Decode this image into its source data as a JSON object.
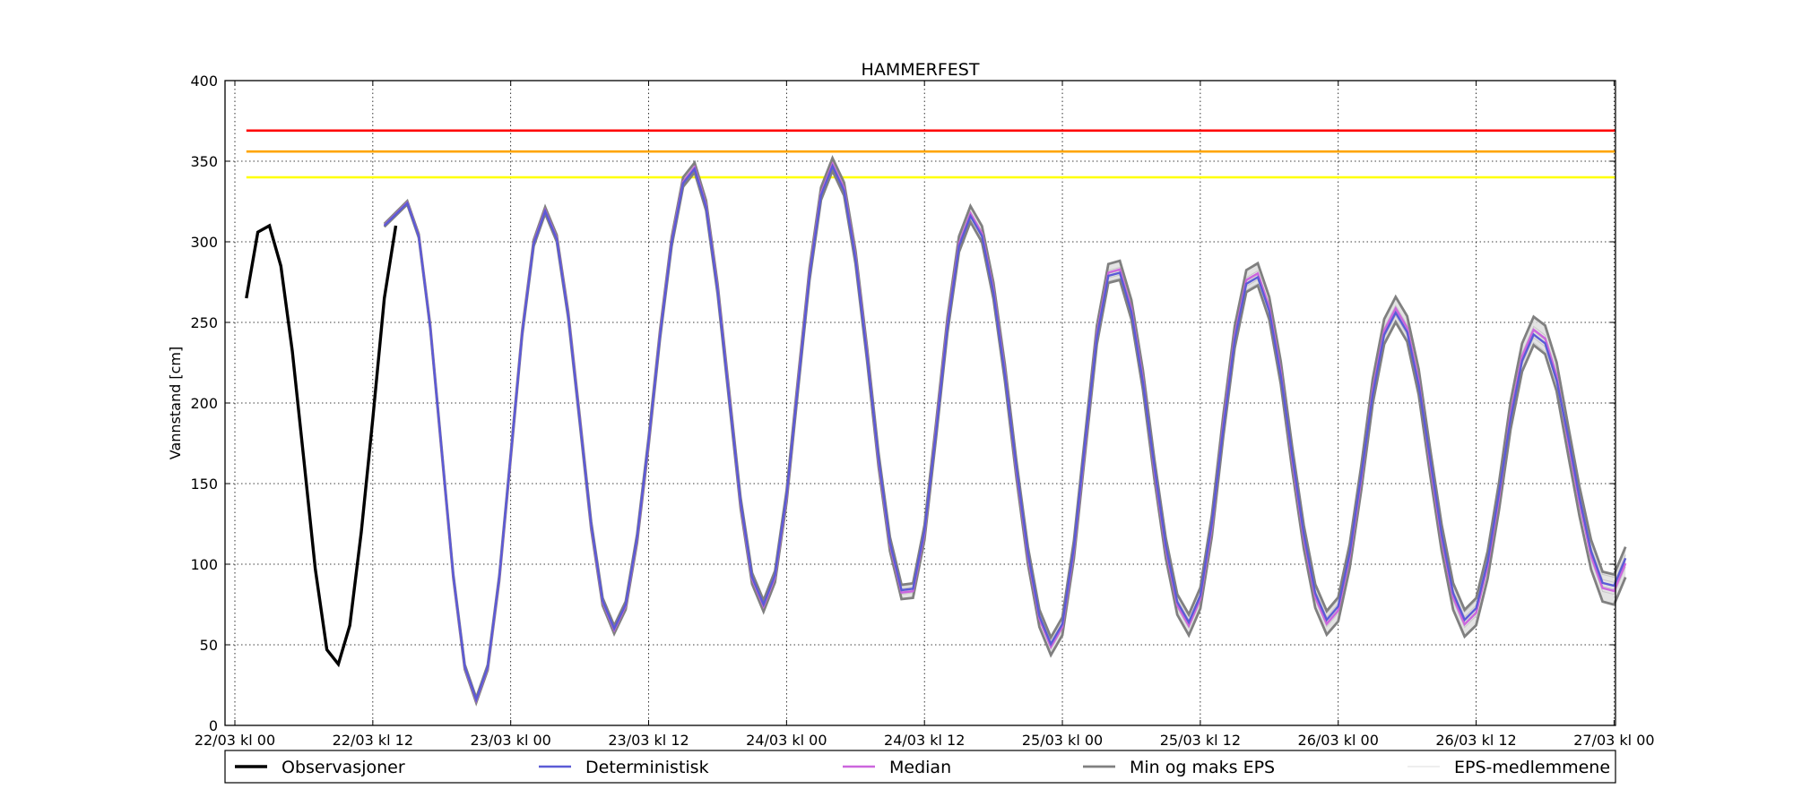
{
  "chart_data": {
    "type": "line",
    "title": "HAMMERFEST",
    "xlabel": "",
    "ylabel": "Vannstand [cm]",
    "xlim": [
      0,
      122
    ],
    "ylim": [
      0,
      400
    ],
    "yticks": [
      0,
      50,
      100,
      150,
      200,
      250,
      300,
      350,
      400
    ],
    "xticks": [
      {
        "hour": 0,
        "label": "22/03 kl 00"
      },
      {
        "hour": 12,
        "label": "22/03 kl 12"
      },
      {
        "hour": 24,
        "label": "23/03 kl 00"
      },
      {
        "hour": 36,
        "label": "23/03 kl 12"
      },
      {
        "hour": 48,
        "label": "24/03 kl 00"
      },
      {
        "hour": 60,
        "label": "24/03 kl 12"
      },
      {
        "hour": 72,
        "label": "25/03 kl 00"
      },
      {
        "hour": 84,
        "label": "25/03 kl 12"
      },
      {
        "hour": 96,
        "label": "26/03 kl 00"
      },
      {
        "hour": 108,
        "label": "26/03 kl 12"
      },
      {
        "hour": 120,
        "label": "27/03 kl 00"
      }
    ],
    "grid": true,
    "legend_position": "bottom",
    "thresholds": [
      {
        "value": 369,
        "color": "#ff0000"
      },
      {
        "value": 356,
        "color": "#ffa500"
      },
      {
        "value": 340,
        "color": "#ffff00"
      }
    ],
    "observations": {
      "name": "Observasjoner",
      "color": "#000000",
      "x": [
        1,
        2,
        3,
        4,
        5,
        6,
        7,
        8,
        9,
        10,
        11,
        12,
        13,
        14
      ],
      "y": [
        265,
        306,
        310,
        285,
        232,
        165,
        97,
        47,
        38,
        62,
        120,
        190,
        265,
        310
      ]
    },
    "forecast_hours": {
      "start": 13,
      "step": 1,
      "count": 109
    },
    "tide_cycles": [
      {
        "hw_hour": 15,
        "hw": 324,
        "lw_hour": 21,
        "lw": 16
      },
      {
        "hw_hour": 27,
        "hw": 319,
        "lw_hour": 33,
        "lw": 60
      },
      {
        "hw_hour": 39.8,
        "hw": 346,
        "lw_hour": 46,
        "lw": 75
      },
      {
        "hw_hour": 52,
        "hw": 347,
        "lw_hour": 58.5,
        "lw": 80
      },
      {
        "hw_hour": 64,
        "hw": 316,
        "lw_hour": 71.2,
        "lw": 50
      },
      {
        "hw_hour": 76.5,
        "hw": 284,
        "lw_hour": 83,
        "lw": 64
      },
      {
        "hw_hour": 88.6,
        "hw": 280,
        "lw_hour": 95.2,
        "lw": 65
      },
      {
        "hw_hour": 101,
        "hw": 256,
        "lw_hour": 107.2,
        "lw": 65
      },
      {
        "hw_hour": 113.2,
        "hw": 243,
        "lw_hour": 119.6,
        "lw": 85
      }
    ],
    "initial_level": 310,
    "spread_growth_per_hour": 0.09,
    "series": [
      {
        "name": "Deterministisk",
        "color": "#5b5bd6"
      },
      {
        "name": "Median",
        "color": "#cc66dd"
      },
      {
        "name": "Min og maks EPS",
        "color": "#808080"
      },
      {
        "name": "EPS-medlemmene",
        "color": "#dcdcdc"
      }
    ]
  }
}
